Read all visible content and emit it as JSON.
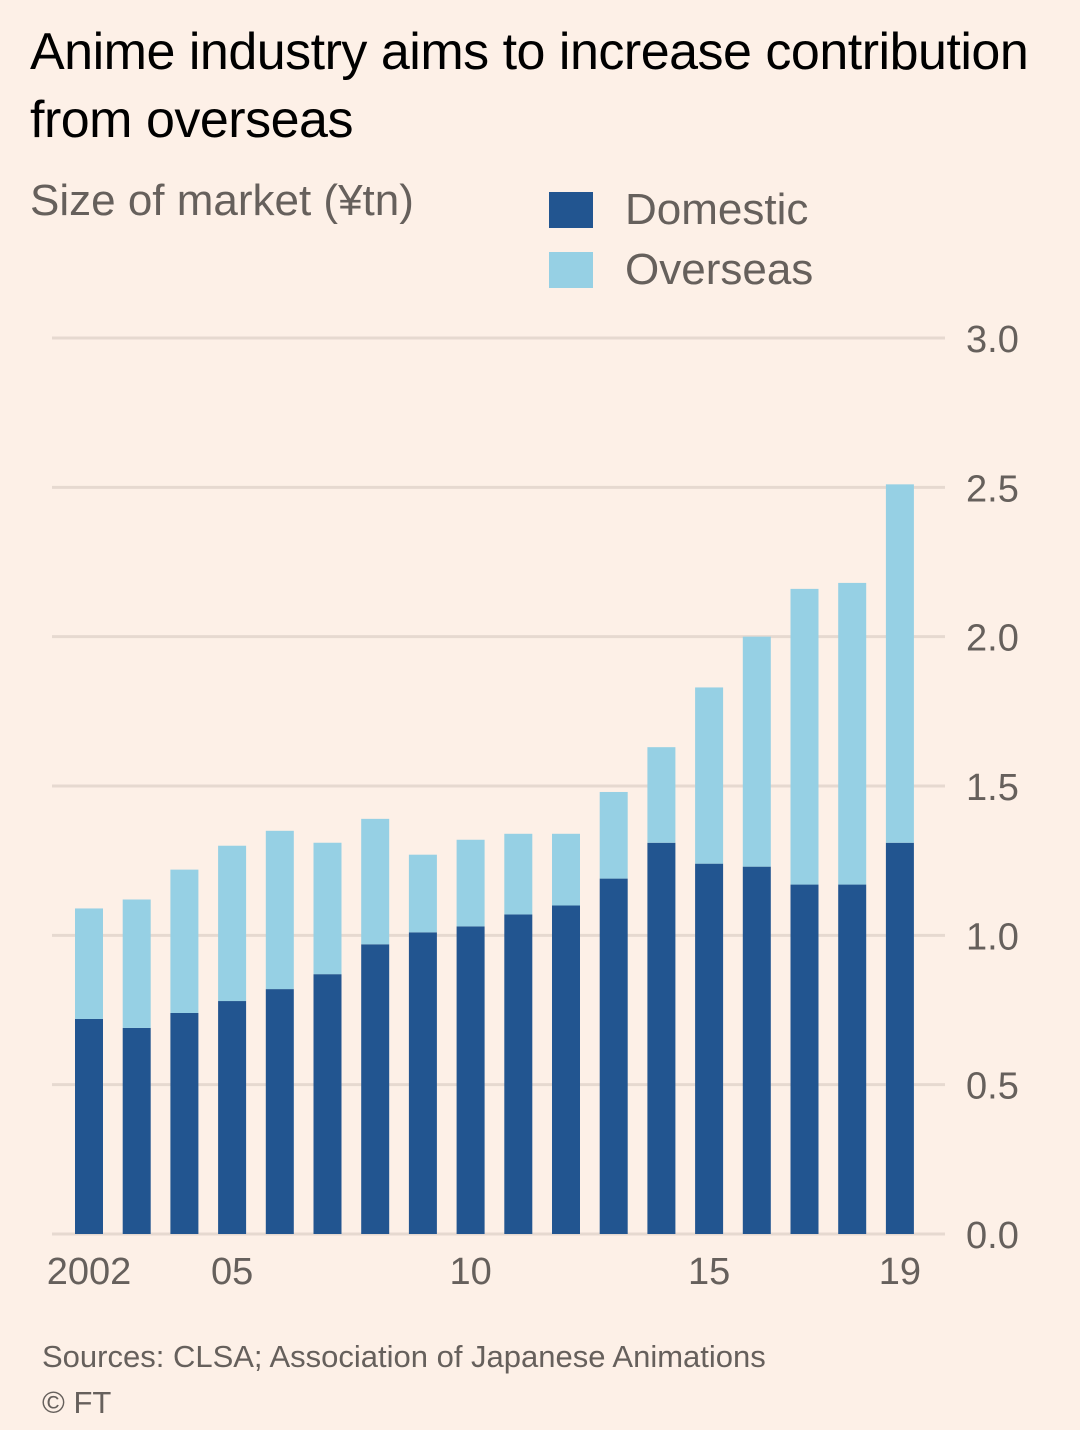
{
  "title": "Anime industry aims to increase contribution from overseas",
  "subtitle": "Size of market (¥tn)",
  "legend": [
    {
      "label": "Domestic",
      "color": "#225590"
    },
    {
      "label": "Overseas",
      "color": "#96d0e4"
    }
  ],
  "source": "Sources: CLSA; Association of Japanese Animations",
  "copyright": "© FT",
  "chart_data": {
    "type": "bar",
    "stacked": true,
    "title": "Anime industry aims to increase contribution from overseas",
    "ylabel": "Size of market (¥tn)",
    "xlabel": "",
    "categories": [
      "2002",
      "2003",
      "2004",
      "2005",
      "2006",
      "2007",
      "2008",
      "2009",
      "2010",
      "2011",
      "2012",
      "2013",
      "2014",
      "2015",
      "2016",
      "2017",
      "2018",
      "2019"
    ],
    "x_tick_labels": [
      {
        "category": "2002",
        "label": "2002"
      },
      {
        "category": "2005",
        "label": "05"
      },
      {
        "category": "2010",
        "label": "10"
      },
      {
        "category": "2015",
        "label": "15"
      },
      {
        "category": "2019",
        "label": "19"
      }
    ],
    "series": [
      {
        "name": "Domestic",
        "color": "#225590",
        "values": [
          0.72,
          0.69,
          0.74,
          0.78,
          0.82,
          0.87,
          0.97,
          1.01,
          1.03,
          1.07,
          1.1,
          1.19,
          1.31,
          1.24,
          1.23,
          1.17,
          1.17,
          1.31
        ]
      },
      {
        "name": "Overseas",
        "color": "#96d0e4",
        "values": [
          0.37,
          0.43,
          0.48,
          0.52,
          0.53,
          0.44,
          0.42,
          0.26,
          0.29,
          0.27,
          0.24,
          0.29,
          0.32,
          0.59,
          0.77,
          0.99,
          1.01,
          1.2
        ]
      }
    ],
    "ylim": [
      0,
      3.0
    ],
    "y_ticks": [
      "0.0",
      "0.5",
      "1.0",
      "1.5",
      "2.0",
      "2.5",
      "3.0"
    ],
    "y_axis_side": "right",
    "grid": true,
    "legend_position": "top-right"
  }
}
